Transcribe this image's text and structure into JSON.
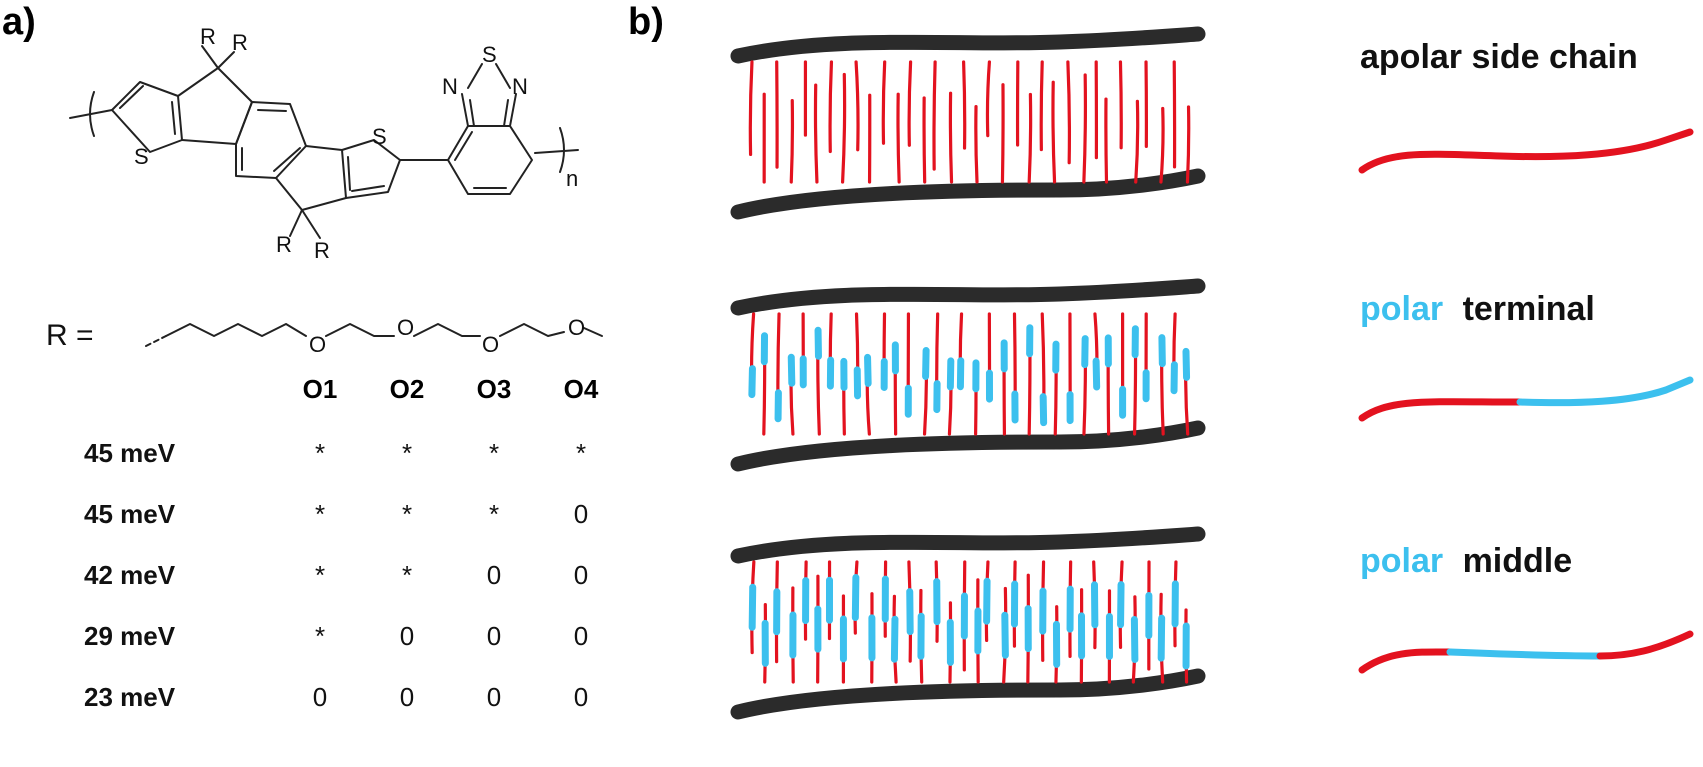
{
  "panels": {
    "a": "a)",
    "b": "b)"
  },
  "structure": {
    "substituent": "R",
    "sulfur": "S",
    "nitrogen": "N",
    "oxygen": "O",
    "repeat_subscript": "n"
  },
  "r_equals": "R =",
  "table": {
    "columns": [
      "O1",
      "O2",
      "O3",
      "O4"
    ],
    "rows": [
      {
        "label": "45 meV",
        "cells": [
          "*",
          "*",
          "*",
          "*"
        ]
      },
      {
        "label": "45 meV",
        "cells": [
          "*",
          "*",
          "*",
          "0"
        ]
      },
      {
        "label": "42 meV",
        "cells": [
          "*",
          "*",
          "0",
          "0"
        ]
      },
      {
        "label": "29 meV",
        "cells": [
          "*",
          "0",
          "0",
          "0"
        ]
      },
      {
        "label": "23 meV",
        "cells": [
          "0",
          "0",
          "0",
          "0"
        ]
      }
    ]
  },
  "legend": {
    "apolar": {
      "text": "apolar side chain"
    },
    "terminal": {
      "polar_word": "polar",
      "rest": "terminal"
    },
    "middle": {
      "polar_word": "polar",
      "rest": "middle"
    }
  },
  "colors": {
    "apolar": "#e3121f",
    "polar": "#3cc0ee",
    "backbone": "#2b2b2b",
    "text": "#111111"
  }
}
